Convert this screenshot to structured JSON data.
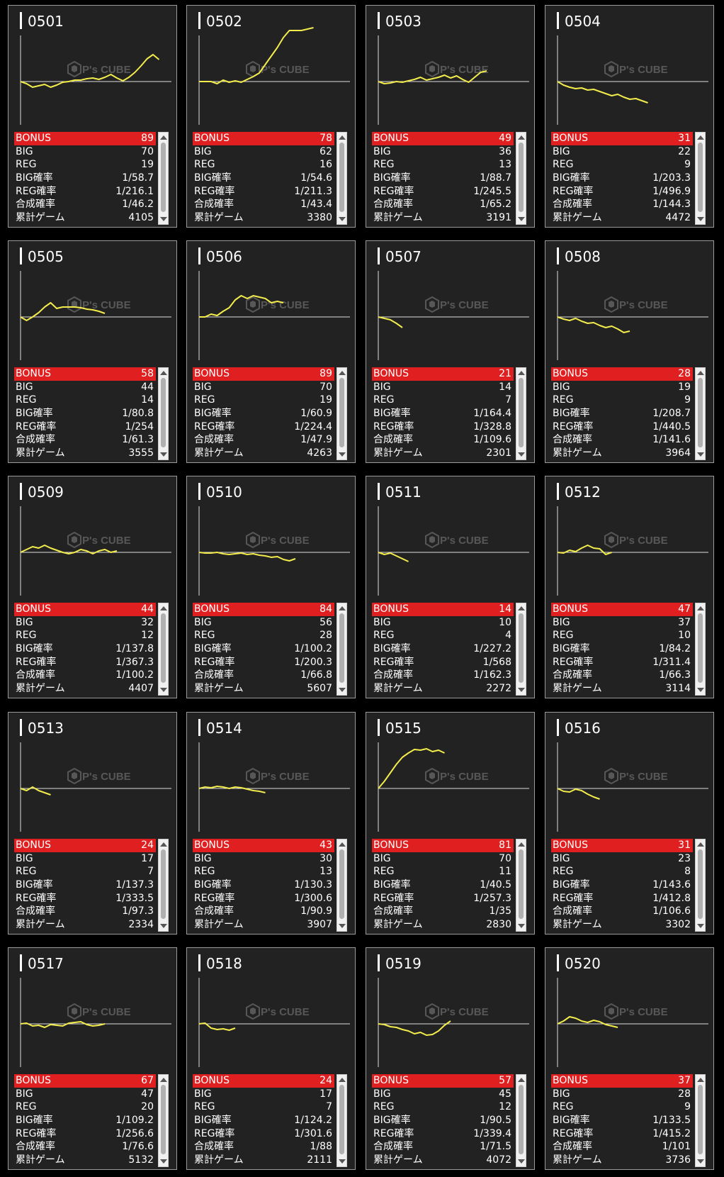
{
  "colors": {
    "line": "#f2ec4c",
    "bonus_row": "#e02020",
    "panel": "#222222",
    "axis": "#dddddd"
  },
  "watermark": {
    "icon": "cube-logo-icon",
    "text": "P's CUBE"
  },
  "labels": [
    "BONUS",
    "BIG",
    "REG",
    "BIG確率",
    "REG確率",
    "合成確率",
    "累計ゲーム"
  ],
  "machines": [
    {
      "number": "0501",
      "stats": [
        "89",
        "70",
        "19",
        "1/58.7",
        "1/216.1",
        "1/46.2",
        "4105"
      ],
      "graph": [
        0,
        -3,
        -8,
        -6,
        -4,
        -8,
        -5,
        -1,
        0,
        2,
        2,
        4,
        5,
        3,
        6,
        10,
        5,
        1,
        6,
        13,
        22,
        32,
        38,
        31
      ]
    },
    {
      "number": "0502",
      "stats": [
        "78",
        "62",
        "16",
        "1/54.6",
        "1/211.3",
        "1/43.4",
        "3380"
      ],
      "graph": [
        0,
        0,
        0,
        -3,
        2,
        -1,
        1,
        -1,
        3,
        7,
        12,
        24,
        36,
        48,
        62,
        72,
        72,
        72,
        74,
        76
      ]
    },
    {
      "number": "0503",
      "stats": [
        "49",
        "36",
        "13",
        "1/88.7",
        "1/245.5",
        "1/65.2",
        "3191"
      ],
      "graph": [
        0,
        -3,
        -2,
        0,
        -1,
        1,
        3,
        6,
        2,
        4,
        6,
        9,
        5,
        8,
        3,
        -1,
        6,
        13,
        15
      ]
    },
    {
      "number": "0504",
      "stats": [
        "31",
        "22",
        "9",
        "1/203.3",
        "1/496.9",
        "1/144.3",
        "4472"
      ],
      "graph": [
        0,
        -5,
        -8,
        -10,
        -9,
        -12,
        -11,
        -14,
        -17,
        -20,
        -18,
        -22,
        -25,
        -24,
        -27,
        -30
      ]
    },
    {
      "number": "0505",
      "stats": [
        "58",
        "44",
        "14",
        "1/80.8",
        "1/254",
        "1/61.3",
        "3555"
      ],
      "graph": [
        0,
        -5,
        0,
        6,
        14,
        20,
        12,
        14,
        14,
        14,
        13,
        11,
        10,
        8,
        5
      ]
    },
    {
      "number": "0506",
      "stats": [
        "89",
        "70",
        "19",
        "1/60.9",
        "1/224.4",
        "1/47.9",
        "4263"
      ],
      "graph": [
        0,
        0,
        4,
        2,
        8,
        13,
        24,
        30,
        26,
        30,
        28,
        26,
        20,
        22,
        20
      ]
    },
    {
      "number": "0507",
      "stats": [
        "21",
        "14",
        "7",
        "1/164.4",
        "1/328.8",
        "1/109.6",
        "2301"
      ],
      "graph": [
        0,
        -2,
        -4,
        -9,
        -15
      ]
    },
    {
      "number": "0508",
      "stats": [
        "28",
        "19",
        "9",
        "1/208.7",
        "1/440.5",
        "1/141.6",
        "3964"
      ],
      "graph": [
        0,
        -3,
        -5,
        -2,
        -6,
        -9,
        -8,
        -12,
        -15,
        -13,
        -17,
        -22,
        -20
      ]
    },
    {
      "number": "0509",
      "stats": [
        "44",
        "32",
        "12",
        "1/137.8",
        "1/367.3",
        "1/100.2",
        "4407"
      ],
      "graph": [
        0,
        4,
        8,
        6,
        10,
        6,
        3,
        0,
        -2,
        0,
        4,
        2,
        -2,
        2,
        4,
        0,
        2
      ]
    },
    {
      "number": "0510",
      "stats": [
        "84",
        "56",
        "28",
        "1/100.2",
        "1/200.3",
        "1/66.8",
        "5607"
      ],
      "graph": [
        0,
        -1,
        -1,
        0,
        -2,
        -3,
        -2,
        -1,
        -3,
        -2,
        -4,
        -5,
        -7,
        -6,
        -10,
        -12,
        -9
      ]
    },
    {
      "number": "0511",
      "stats": [
        "14",
        "10",
        "4",
        "1/227.2",
        "1/568",
        "1/162.3",
        "2272"
      ],
      "graph": [
        0,
        -3,
        -1,
        -5,
        -9,
        -13
      ]
    },
    {
      "number": "0512",
      "stats": [
        "47",
        "37",
        "10",
        "1/84.2",
        "1/311.4",
        "1/66.3",
        "3114"
      ],
      "graph": [
        0,
        -1,
        3,
        1,
        6,
        10,
        6,
        5,
        -3,
        0
      ]
    },
    {
      "number": "0513",
      "stats": [
        "24",
        "17",
        "7",
        "1/137.3",
        "1/333.5",
        "1/97.3",
        "2334"
      ],
      "graph": [
        0,
        -3,
        2,
        -3,
        -6,
        -9
      ]
    },
    {
      "number": "0514",
      "stats": [
        "43",
        "30",
        "13",
        "1/130.3",
        "1/300.6",
        "1/90.9",
        "3907"
      ],
      "graph": [
        0,
        2,
        1,
        3,
        2,
        0,
        2,
        1,
        -1,
        -3,
        -4,
        -6
      ]
    },
    {
      "number": "0515",
      "stats": [
        "81",
        "70",
        "11",
        "1/40.5",
        "1/257.3",
        "1/35",
        "2830"
      ],
      "graph": [
        0,
        10,
        22,
        34,
        44,
        50,
        55,
        54,
        56,
        52,
        54,
        50
      ]
    },
    {
      "number": "0516",
      "stats": [
        "31",
        "23",
        "8",
        "1/143.6",
        "1/412.8",
        "1/106.6",
        "3302"
      ],
      "graph": [
        0,
        -4,
        -5,
        -1,
        -3,
        -8,
        -12,
        -15
      ]
    },
    {
      "number": "0517",
      "stats": [
        "67",
        "47",
        "20",
        "1/109.2",
        "1/256.6",
        "1/76.6",
        "5132"
      ],
      "graph": [
        0,
        1,
        -3,
        -2,
        -5,
        -1,
        -2,
        -3,
        1,
        2,
        3,
        -1,
        -3,
        -2,
        0
      ]
    },
    {
      "number": "0518",
      "stats": [
        "24",
        "17",
        "7",
        "1/124.2",
        "1/301.6",
        "1/88",
        "2111"
      ],
      "graph": [
        0,
        1,
        -6,
        -8,
        -7,
        -9,
        -6
      ]
    },
    {
      "number": "0519",
      "stats": [
        "57",
        "45",
        "12",
        "1/90.5",
        "1/339.4",
        "1/71.5",
        "4072"
      ],
      "graph": [
        0,
        -1,
        -4,
        -5,
        -8,
        -10,
        -14,
        -12,
        -16,
        -15,
        -10,
        -2,
        4
      ]
    },
    {
      "number": "0520",
      "stats": [
        "37",
        "28",
        "9",
        "1/133.5",
        "1/415.2",
        "1/101",
        "3736"
      ],
      "graph": [
        0,
        4,
        10,
        8,
        4,
        2,
        5,
        3,
        -1,
        -3,
        -5
      ]
    }
  ]
}
